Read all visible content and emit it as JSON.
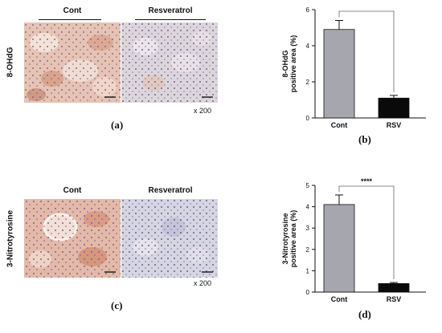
{
  "panels": {
    "a": {
      "letter": "(a)",
      "row_label": "8-OHdG",
      "group_left": "Cont",
      "group_right": "Resveratrol",
      "magnification": "x 200"
    },
    "c": {
      "letter": "(c)",
      "row_label": "3-Nitrotyrosine",
      "group_left": "Cont",
      "group_right": "Resveratrol",
      "magnification": "x 200"
    },
    "b": {
      "letter": "(b)"
    },
    "d": {
      "letter": "(d)"
    }
  },
  "colors": {
    "cont_bar": "#a6a6ae",
    "rsv_bar": "#0a0a0a",
    "tissue_control": "#e6c3b4",
    "tissue_resveratrol": "#d8d6df"
  },
  "chart_data": [
    {
      "type": "bar",
      "categories": [
        "Cont",
        "RSV"
      ],
      "values": [
        4.9,
        1.1
      ],
      "errors": [
        0.5,
        0.15
      ],
      "ylabel": "8-OHdG\npositive area (%)",
      "ylim": [
        0,
        6
      ],
      "yticks": [
        "0",
        "2",
        "4",
        "6"
      ],
      "significance": ""
    },
    {
      "type": "bar",
      "categories": [
        "Cont",
        "RSV"
      ],
      "values": [
        4.1,
        0.4
      ],
      "errors": [
        0.45,
        0.05
      ],
      "ylabel": "3-Nitrotyrosine\npositive area (%)",
      "ylim": [
        0,
        5
      ],
      "yticks": [
        "0",
        "1",
        "2",
        "3",
        "4",
        "5"
      ],
      "significance": "****"
    }
  ]
}
